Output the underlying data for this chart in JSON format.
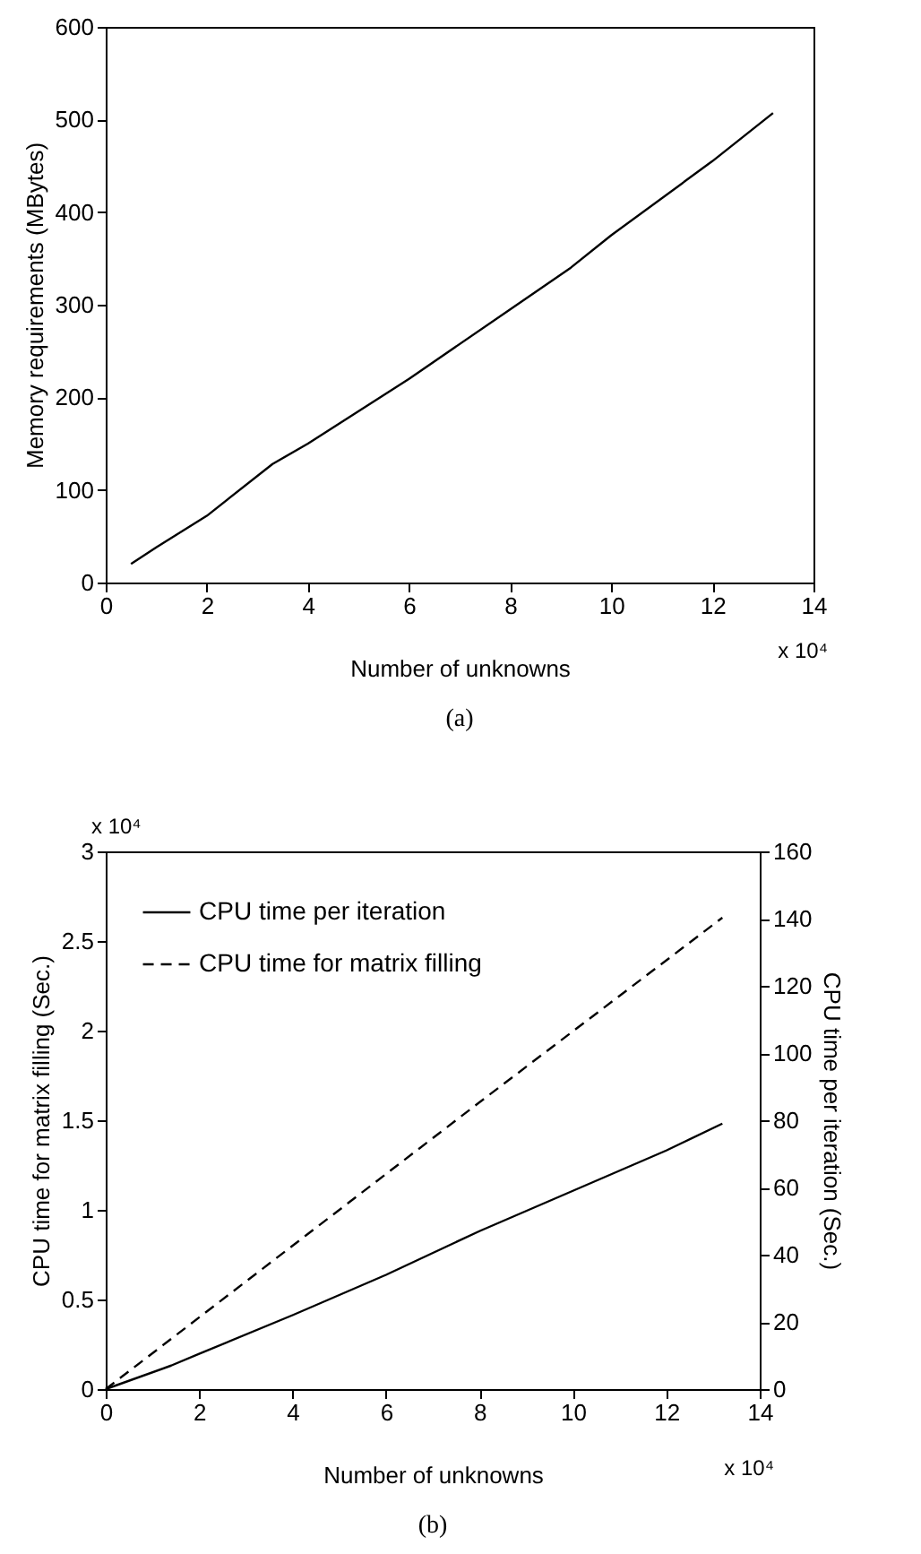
{
  "chart_data": [
    {
      "type": "line",
      "title": "(a)",
      "xlabel": "Number of unknowns",
      "ylabel": "Memory requirements (MBytes)",
      "x": [
        0.5,
        1,
        2,
        3.3,
        4,
        6,
        8,
        9.2,
        10,
        12,
        13.2
      ],
      "series": [
        {
          "color": "#000000",
          "values": [
            20,
            38,
            72,
            128,
            150,
            220,
            295,
            340,
            375,
            455,
            507
          ]
        }
      ],
      "xlim": [
        0,
        14
      ],
      "xticks": [
        0,
        2,
        4,
        6,
        8,
        10,
        12,
        14
      ],
      "ylim": [
        0,
        600
      ],
      "yticks": [
        0,
        100,
        200,
        300,
        400,
        500,
        600
      ],
      "annotations": [
        "x 10⁴"
      ],
      "grid": false,
      "legend": false,
      "line_style": "solid"
    },
    {
      "type": "line",
      "title": "(b)",
      "xlabel": "Number of unknowns",
      "ylabel": "CPU time for matrix filling (Sec.)",
      "y2label": "CPU time per iteration (Sec.)",
      "series": [
        {
          "name": "CPU time per iteration",
          "color": "#000000",
          "axis": "y2",
          "line_style": "solid",
          "x": [
            0,
            1.4,
            2,
            4,
            6,
            8,
            10,
            12,
            13.2
          ],
          "values": [
            0,
            7,
            10.5,
            22,
            34,
            47,
            59,
            71,
            79
          ]
        },
        {
          "name": "CPU time for matrix filling",
          "color": "#000000",
          "line_style": "dashed",
          "x": [
            0,
            4,
            8,
            13.2
          ],
          "values": [
            0,
            0.8,
            1.6,
            2.63
          ]
        }
      ],
      "xlim": [
        0,
        14
      ],
      "xticks": [
        0,
        2,
        4,
        6,
        8,
        10,
        12,
        14
      ],
      "ylim": [
        0,
        3
      ],
      "yticks": [
        0,
        0.5,
        1,
        1.5,
        2,
        2.5,
        3
      ],
      "y2lim": [
        0,
        160
      ],
      "y2ticks": [
        0,
        20,
        40,
        60,
        80,
        100,
        120,
        140,
        160
      ],
      "annotations": [
        "x 10⁴",
        "x 10⁴"
      ],
      "grid": false,
      "legend": "top left"
    }
  ]
}
